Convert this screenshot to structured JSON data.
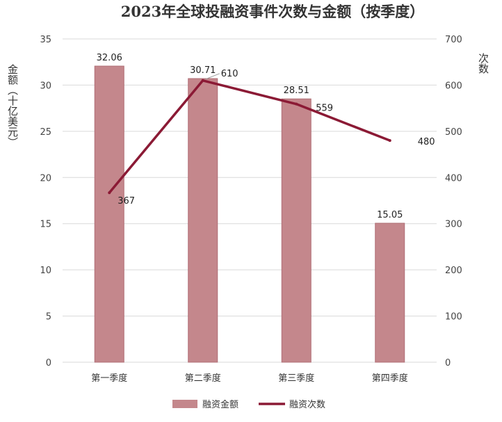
{
  "chart_data": {
    "type": "bar",
    "title": "2023年全球投融资事件次数与金额（按季度）",
    "categories": [
      "第一季度",
      "第二季度",
      "第三季度",
      "第四季度"
    ],
    "series": [
      {
        "name": "融资金额",
        "type": "bar",
        "axis": "left",
        "values": [
          32.06,
          30.71,
          28.51,
          15.05
        ],
        "color": "#c4878c"
      },
      {
        "name": "融资次数",
        "type": "line",
        "axis": "right",
        "values": [
          367,
          610,
          559,
          480
        ],
        "color": "#8b1a35"
      }
    ],
    "ylabel_left": "金额（十亿美元）",
    "ylabel_right": "次数",
    "ylim_left": [
      0,
      35
    ],
    "ylim_right": [
      0,
      700
    ],
    "yticks_left": [
      "0",
      "5",
      "10",
      "15",
      "20",
      "25",
      "30",
      "35"
    ],
    "yticks_right": [
      "0",
      "100",
      "200",
      "300",
      "400",
      "500",
      "600",
      "700"
    ],
    "bar_labels": [
      "32.06",
      "30.71",
      "28.51",
      "15.05"
    ],
    "line_labels": [
      "367",
      "610",
      "559",
      "480"
    ],
    "grid": true,
    "legend_position": "bottom"
  }
}
